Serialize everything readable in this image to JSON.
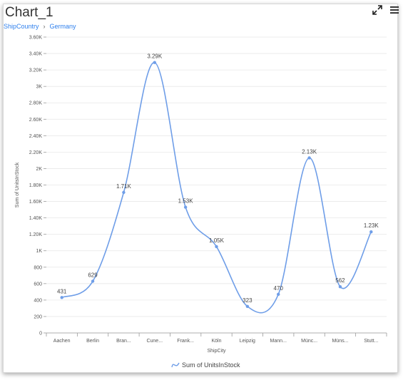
{
  "header": {
    "title": "Chart_1",
    "breadcrumb": [
      "ShipCountry",
      "Germany"
    ]
  },
  "toolbar": {
    "expand_icon": "expand-icon",
    "menu_icon": "menu-icon"
  },
  "colors": {
    "series": "#6f9ee8",
    "grid": "#e8e8e8",
    "link": "#2f80ed"
  },
  "chart_data": {
    "type": "line",
    "smooth": true,
    "categories": [
      "Aachen",
      "Berlin",
      "Bran...",
      "Cune...",
      "Frank...",
      "Köln",
      "Leipzig",
      "Mann...",
      "Münc...",
      "Müns...",
      "Stutt..."
    ],
    "series": [
      {
        "name": "Sum of UnitsInStock",
        "values": [
          431,
          629,
          1710,
          3290,
          1530,
          1050,
          323,
          470,
          2130,
          562,
          1230
        ],
        "labels": [
          "431",
          "629",
          "1.71K",
          "3.29K",
          "1.53K",
          "1.05K",
          "323",
          "470",
          "2.13K",
          "562",
          "1.23K"
        ]
      }
    ],
    "xlabel": "ShipCity",
    "ylabel": "Sum of UnitsInStock",
    "ylim": [
      0,
      3600
    ],
    "yticks": [
      0,
      200,
      400,
      600,
      800,
      1000,
      1200,
      1400,
      1600,
      1800,
      2000,
      2200,
      2400,
      2600,
      2800,
      3000,
      3200,
      3400,
      3600
    ],
    "ytick_labels": [
      "0",
      "200",
      "400",
      "600",
      "800",
      "1K",
      "1.20K",
      "1.40K",
      "1.60K",
      "1.80K",
      "2K",
      "2.20K",
      "2.40K",
      "2.60K",
      "2.80K",
      "3K",
      "3.20K",
      "3.40K",
      "3.60K"
    ],
    "grid": true,
    "legend_position": "bottom"
  }
}
